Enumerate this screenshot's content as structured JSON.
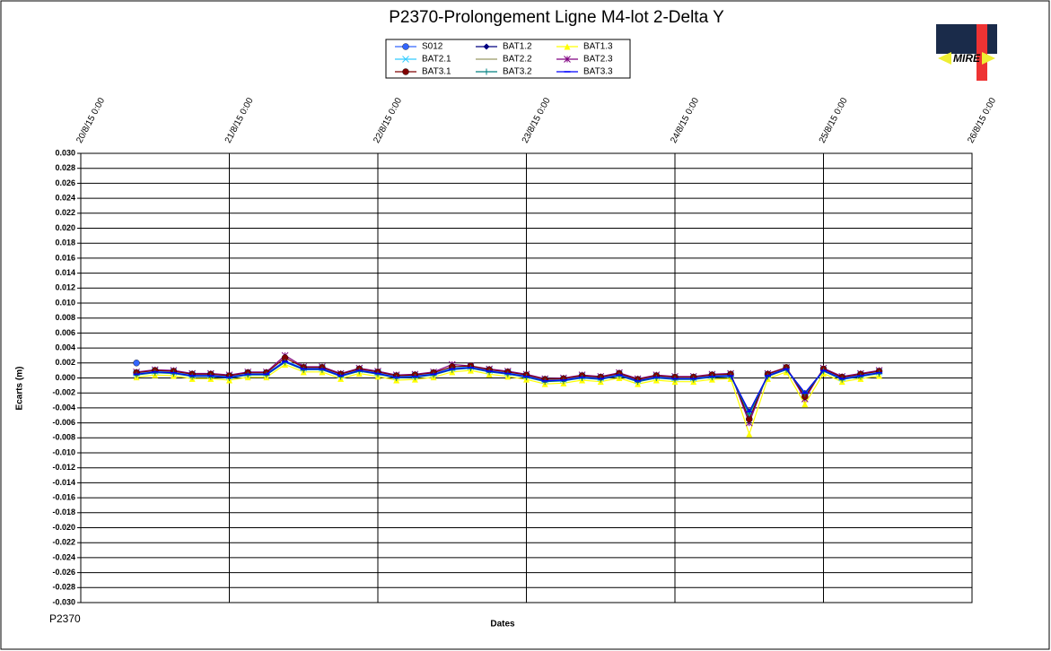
{
  "chart_data": {
    "type": "line",
    "title": "P2370-Prolongement  Ligne  M4-lot 2-Delta  Y",
    "x_label": "Dates",
    "y_label": "Ecarts (m)",
    "footer": "P2370",
    "logo_text": "MIRE",
    "grid": true,
    "xlim": [
      "20/8/15 0:00",
      "26/8/15 0:00"
    ],
    "xticks": [
      "20/8/15 0:00",
      "21/8/15 0:00",
      "22/8/15 0:00",
      "23/8/15 0:00",
      "24/8/15 0:00",
      "25/8/15 0:00",
      "26/8/15 0:00"
    ],
    "ylim": [
      -0.03,
      0.03
    ],
    "yticks": [
      {
        "value": 0.03,
        "label": "0.030"
      },
      {
        "value": 0.028,
        "label": "0.028"
      },
      {
        "value": 0.026,
        "label": "0.026"
      },
      {
        "value": 0.024,
        "label": "0.024"
      },
      {
        "value": 0.022,
        "label": "0.022"
      },
      {
        "value": 0.02,
        "label": "0.020"
      },
      {
        "value": 0.018,
        "label": "0.018"
      },
      {
        "value": 0.016,
        "label": "0.016"
      },
      {
        "value": 0.014,
        "label": "0.014"
      },
      {
        "value": 0.012,
        "label": "0.012"
      },
      {
        "value": 0.01,
        "label": "0.010"
      },
      {
        "value": 0.008,
        "label": "0.008"
      },
      {
        "value": 0.006,
        "label": "0.006"
      },
      {
        "value": 0.004,
        "label": "0.004"
      },
      {
        "value": 0.002,
        "label": "0.002"
      },
      {
        "value": 0,
        "label": "0.000"
      },
      {
        "value": -0.002,
        "label": "-0.002"
      },
      {
        "value": -0.004,
        "label": "-0.004"
      },
      {
        "value": -0.006,
        "label": "-0.006"
      },
      {
        "value": -0.008,
        "label": "-0.008"
      },
      {
        "value": -0.01,
        "label": "-0.010"
      },
      {
        "value": -0.012,
        "label": "-0.012"
      },
      {
        "value": -0.014,
        "label": "-0.014"
      },
      {
        "value": -0.016,
        "label": "-0.016"
      },
      {
        "value": -0.018,
        "label": "-0.018"
      },
      {
        "value": -0.02,
        "label": "-0.020"
      },
      {
        "value": -0.022,
        "label": "-0.022"
      },
      {
        "value": -0.024,
        "label": "-0.024"
      },
      {
        "value": -0.026,
        "label": "-0.026"
      },
      {
        "value": -0.028,
        "label": "-0.028"
      },
      {
        "value": -0.03,
        "label": "-0.030"
      }
    ],
    "x": [
      "20/8/15 9:00",
      "20/8/15 12:00",
      "20/8/15 15:00",
      "20/8/15 18:00",
      "20/8/15 21:00",
      "21/8/15 0:00",
      "21/8/15 3:00",
      "21/8/15 6:00",
      "21/8/15 9:00",
      "21/8/15 12:00",
      "21/8/15 15:00",
      "21/8/15 18:00",
      "21/8/15 21:00",
      "22/8/15 0:00",
      "22/8/15 3:00",
      "22/8/15 6:00",
      "22/8/15 9:00",
      "22/8/15 12:00",
      "22/8/15 15:00",
      "22/8/15 18:00",
      "22/8/15 21:00",
      "23/8/15 0:00",
      "23/8/15 3:00",
      "23/8/15 6:00",
      "23/8/15 9:00",
      "23/8/15 12:00",
      "23/8/15 15:00",
      "23/8/15 18:00",
      "23/8/15 21:00",
      "24/8/15 0:00",
      "24/8/15 3:00",
      "24/8/15 6:00",
      "24/8/15 9:00",
      "24/8/15 12:00",
      "24/8/15 15:00",
      "24/8/15 18:00",
      "24/8/15 21:00",
      "25/8/15 0:00",
      "25/8/15 3:00",
      "25/8/15 6:00",
      "25/8/15 9:00"
    ],
    "series": [
      {
        "name": "S012",
        "color": "#3366ff",
        "marker": "circle",
        "values": [
          0.002,
          null,
          null,
          null,
          null,
          null,
          null,
          null,
          null,
          null,
          null,
          null,
          null,
          null,
          null,
          null,
          null,
          null,
          null,
          null,
          null,
          null,
          null,
          null,
          null,
          null,
          null,
          null,
          null,
          null,
          null,
          null,
          null,
          null,
          null,
          null,
          null,
          null,
          null,
          null,
          null
        ]
      },
      {
        "name": "BAT1.2",
        "color": "#000080",
        "marker": "diamond",
        "values": [
          0.0005,
          0.0008,
          0.0007,
          0.0003,
          0.0003,
          0.0001,
          0.0005,
          0.0005,
          0.0022,
          0.0012,
          0.0012,
          0.0003,
          0.001,
          0.0006,
          0.0001,
          0.0002,
          0.0005,
          0.0012,
          0.0014,
          0.0009,
          0.0006,
          0.0002,
          -0.0004,
          -0.0003,
          0.0001,
          -0.0001,
          0.0004,
          -0.0004,
          0.0001,
          -0.0001,
          -0.0001,
          0.0002,
          0.0003,
          -0.0045,
          0.0003,
          0.0012,
          -0.002,
          0.001,
          -0.0001,
          0.0003,
          0.0007
        ]
      },
      {
        "name": "BAT1.3",
        "color": "#ffff00",
        "marker": "triangle",
        "values": [
          0.0001,
          0.0004,
          0.0003,
          -0.0001,
          -0.0001,
          -0.0003,
          0.0001,
          0.0001,
          0.0018,
          0.0008,
          0.0008,
          -0.0001,
          0.0006,
          0.0002,
          -0.0003,
          -0.0002,
          0.0001,
          0.0008,
          0.001,
          0.0005,
          0.0002,
          -0.0002,
          -0.0008,
          -0.0007,
          -0.0003,
          -0.0005,
          0,
          -0.0008,
          -0.0003,
          -0.0005,
          -0.0005,
          -0.0002,
          -0.0001,
          -0.0075,
          -0.0001,
          0.0008,
          -0.0035,
          0.0006,
          -0.0005,
          -0.0001,
          0.0003
        ]
      },
      {
        "name": "BAT2.1",
        "color": "#33ccff",
        "marker": "x",
        "values": [
          0.0006,
          0.0009,
          0.0008,
          0.0004,
          0.0004,
          0.0002,
          0.0006,
          0.0006,
          0.0023,
          0.0013,
          0.0013,
          0.0004,
          0.0011,
          0.0007,
          0.0002,
          0.0003,
          0.0006,
          0.0013,
          0.0015,
          0.001,
          0.0007,
          0.0003,
          -0.0003,
          -0.0002,
          0.0002,
          0,
          0.0005,
          -0.0003,
          0.0002,
          0,
          0,
          0.0003,
          0.0004,
          -0.005,
          0.0004,
          0.0013,
          -0.0022,
          0.0011,
          0,
          0.0004,
          0.0008
        ]
      },
      {
        "name": "BAT2.2",
        "color": "#999966",
        "marker": "none",
        "values": [
          0.0005,
          0.0008,
          0.0007,
          0.0003,
          0.0003,
          0.0001,
          0.0005,
          0.0005,
          0.0022,
          0.0012,
          0.0012,
          0.0003,
          0.001,
          0.0006,
          0.0001,
          0.0002,
          0.0005,
          0.0012,
          0.0014,
          0.0009,
          0.0006,
          0.0002,
          -0.0004,
          -0.0003,
          0.0001,
          -0.0001,
          0.0004,
          -0.0004,
          0.0001,
          -0.0001,
          -0.0001,
          0.0002,
          0.0003,
          -0.0045,
          0.0003,
          0.0012,
          -0.002,
          0.001,
          -0.0001,
          0.0003,
          0.0007
        ]
      },
      {
        "name": "BAT2.3",
        "color": "#800080",
        "marker": "star",
        "values": [
          0.0008,
          0.0011,
          0.001,
          0.0006,
          0.0006,
          0.0004,
          0.0008,
          0.0008,
          0.003,
          0.0015,
          0.0015,
          0.0006,
          0.0013,
          0.0009,
          0.0004,
          0.0005,
          0.0008,
          0.0018,
          0.0016,
          0.0012,
          0.0009,
          0.0005,
          -0.0001,
          0,
          0.0004,
          0.0002,
          0.0007,
          -0.0001,
          0.0004,
          0.0002,
          0.0002,
          0.0005,
          0.0006,
          -0.006,
          0.0006,
          0.0014,
          -0.0028,
          0.0013,
          0.0002,
          0.0006,
          0.001
        ]
      },
      {
        "name": "BAT3.1",
        "color": "#800000",
        "marker": "circle",
        "values": [
          0.0007,
          0.001,
          0.0009,
          0.0005,
          0.0005,
          0.0003,
          0.0007,
          0.0007,
          0.0027,
          0.0014,
          0.0014,
          0.0005,
          0.0012,
          0.0008,
          0.0003,
          0.0004,
          0.0007,
          0.0015,
          0.0016,
          0.0011,
          0.0008,
          0.0004,
          -0.0002,
          -0.0001,
          0.0003,
          0.0001,
          0.0006,
          -0.0002,
          0.0003,
          0.0001,
          0.0001,
          0.0004,
          0.0005,
          -0.0055,
          0.0005,
          0.0014,
          -0.0025,
          0.0012,
          0.0001,
          0.0005,
          0.0009
        ]
      },
      {
        "name": "BAT3.2",
        "color": "#008080",
        "marker": "plus",
        "values": [
          0.0004,
          0.0007,
          0.0006,
          0.0002,
          0.0002,
          0,
          0.0004,
          0.0004,
          0.0021,
          0.0011,
          0.0011,
          0.0002,
          0.0009,
          0.0005,
          0,
          0.0001,
          0.0004,
          0.0011,
          0.0013,
          0.0008,
          0.0005,
          0.0001,
          -0.0005,
          -0.0004,
          0,
          -0.0002,
          0.0003,
          -0.0005,
          0,
          -0.0002,
          -0.0002,
          0.0001,
          0.0002,
          -0.0048,
          0.0002,
          0.0011,
          -0.0021,
          0.0009,
          -0.0002,
          0.0002,
          0.0006
        ]
      },
      {
        "name": "BAT3.3",
        "color": "#0000ff",
        "marker": "dash",
        "values": [
          0.0005,
          0.0008,
          0.0007,
          0.0003,
          0.0003,
          0.0001,
          0.0005,
          0.0005,
          0.0022,
          0.0012,
          0.0012,
          0.0003,
          0.001,
          0.0006,
          0.0001,
          0.0002,
          0.0005,
          0.0012,
          0.0014,
          0.0009,
          0.0006,
          0.0002,
          -0.0004,
          -0.0003,
          0.0001,
          -0.0001,
          0.0004,
          -0.0004,
          0.0001,
          -0.0001,
          -0.0001,
          0.0002,
          0.0003,
          -0.0045,
          0.0003,
          0.0012,
          -0.002,
          0.001,
          -0.0001,
          0.0003,
          0.0007
        ]
      }
    ]
  }
}
